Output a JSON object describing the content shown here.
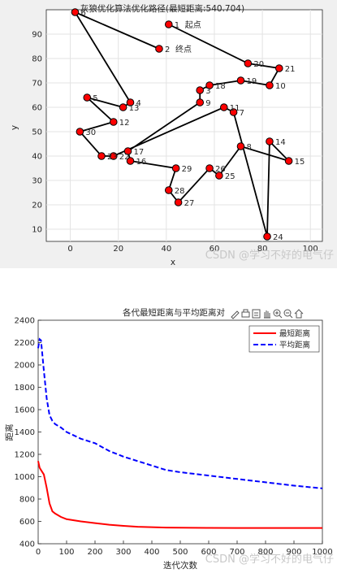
{
  "figure1": {
    "title": "灰狼优化算法优化路径(最短距离:540.704)",
    "xlabel": "x",
    "ylabel": "y",
    "watermark": "CSDN @学习不好的电气仔",
    "chart_data": {
      "type": "scatter",
      "xlim": [
        -10,
        105
      ],
      "ylim": [
        5,
        100
      ],
      "xticks": [
        0,
        20,
        40,
        60,
        80,
        100
      ],
      "yticks": [
        10,
        20,
        30,
        40,
        50,
        60,
        70,
        80,
        90
      ],
      "grid": true,
      "points": [
        {
          "id": "1",
          "x": 41,
          "y": 94,
          "note": "起点"
        },
        {
          "id": "2",
          "x": 37,
          "y": 84,
          "note": "终点"
        },
        {
          "id": "3",
          "x": 54,
          "y": 67,
          "note": ""
        },
        {
          "id": "4",
          "x": 25,
          "y": 62,
          "note": ""
        },
        {
          "id": "5",
          "x": 7,
          "y": 64,
          "note": ""
        },
        {
          "id": "6",
          "x": 2,
          "y": 99,
          "note": ""
        },
        {
          "id": "7",
          "x": 68,
          "y": 58,
          "note": ""
        },
        {
          "id": "8",
          "x": 71,
          "y": 44,
          "note": ""
        },
        {
          "id": "9",
          "x": 54,
          "y": 62,
          "note": ""
        },
        {
          "id": "10",
          "x": 83,
          "y": 69,
          "note": ""
        },
        {
          "id": "11",
          "x": 64,
          "y": 60,
          "note": ""
        },
        {
          "id": "12",
          "x": 18,
          "y": 54,
          "note": ""
        },
        {
          "id": "13",
          "x": 22,
          "y": 60,
          "note": ""
        },
        {
          "id": "14",
          "x": 83,
          "y": 46,
          "note": ""
        },
        {
          "id": "15",
          "x": 91,
          "y": 38,
          "note": ""
        },
        {
          "id": "16",
          "x": 25,
          "y": 38,
          "note": ""
        },
        {
          "id": "17",
          "x": 24,
          "y": 42,
          "note": ""
        },
        {
          "id": "18",
          "x": 58,
          "y": 69,
          "note": ""
        },
        {
          "id": "19",
          "x": 71,
          "y": 71,
          "note": ""
        },
        {
          "id": "20",
          "x": 74,
          "y": 78,
          "note": ""
        },
        {
          "id": "21",
          "x": 87,
          "y": 76,
          "note": ""
        },
        {
          "id": "22",
          "x": 18,
          "y": 40,
          "note": ""
        },
        {
          "id": "23",
          "x": 13,
          "y": 40,
          "note": ""
        },
        {
          "id": "24",
          "x": 82,
          "y": 7,
          "note": ""
        },
        {
          "id": "25",
          "x": 62,
          "y": 32,
          "note": ""
        },
        {
          "id": "26",
          "x": 58,
          "y": 35,
          "note": ""
        },
        {
          "id": "27",
          "x": 45,
          "y": 21,
          "note": ""
        },
        {
          "id": "28",
          "x": 41,
          "y": 26,
          "note": ""
        },
        {
          "id": "29",
          "x": 44,
          "y": 35,
          "note": ""
        },
        {
          "id": "30",
          "x": 4,
          "y": 50,
          "note": ""
        }
      ],
      "route": [
        "1",
        "20",
        "21",
        "10",
        "19",
        "18",
        "3",
        "9",
        "17",
        "16",
        "29",
        "28",
        "27",
        "26",
        "25",
        "8",
        "15",
        "14",
        "24",
        "7",
        "11",
        "22",
        "23",
        "30",
        "12",
        "5",
        "13",
        "4",
        "6",
        "2"
      ]
    }
  },
  "figure2": {
    "title": "各代最短距离与平均距离对",
    "xlabel": "迭代次数",
    "ylabel": "距离",
    "watermark": "CSDN @学习不好的电气仔",
    "toolbar_icons": [
      "pen-icon",
      "print-icon",
      "datatip-icon",
      "pan-icon",
      "zoom-in-icon",
      "zoom-out-icon",
      "home-icon"
    ],
    "chart_data": {
      "type": "line",
      "xlim": [
        0,
        1000
      ],
      "ylim": [
        400,
        2400
      ],
      "xticks": [
        0,
        100,
        200,
        300,
        400,
        500,
        600,
        700,
        800,
        900,
        1000
      ],
      "yticks": [
        400,
        600,
        800,
        1000,
        1200,
        1400,
        1600,
        1800,
        2000,
        2200,
        2400
      ],
      "grid": false,
      "legend_position": "top-right",
      "series": [
        {
          "name": "最短距离",
          "color": "#ff0000",
          "dash": "solid",
          "x": [
            0,
            5,
            10,
            20,
            30,
            40,
            50,
            60,
            80,
            100,
            150,
            200,
            250,
            300,
            350,
            400,
            450,
            500,
            600,
            700,
            800,
            900,
            1000
          ],
          "values": [
            1140,
            1080,
            1060,
            1020,
            900,
            760,
            690,
            670,
            640,
            620,
            600,
            585,
            570,
            560,
            552,
            548,
            545,
            543,
            542,
            541,
            541,
            541,
            541
          ]
        },
        {
          "name": "平均距离",
          "color": "#0000ff",
          "dash": "dashed",
          "x": [
            0,
            5,
            10,
            20,
            30,
            40,
            50,
            60,
            80,
            100,
            150,
            200,
            250,
            300,
            350,
            400,
            450,
            500,
            600,
            700,
            800,
            900,
            1000
          ],
          "values": [
            2150,
            2230,
            2220,
            1950,
            1700,
            1550,
            1500,
            1470,
            1440,
            1400,
            1340,
            1300,
            1230,
            1180,
            1140,
            1100,
            1060,
            1040,
            1010,
            980,
            950,
            920,
            895
          ]
        }
      ]
    }
  }
}
